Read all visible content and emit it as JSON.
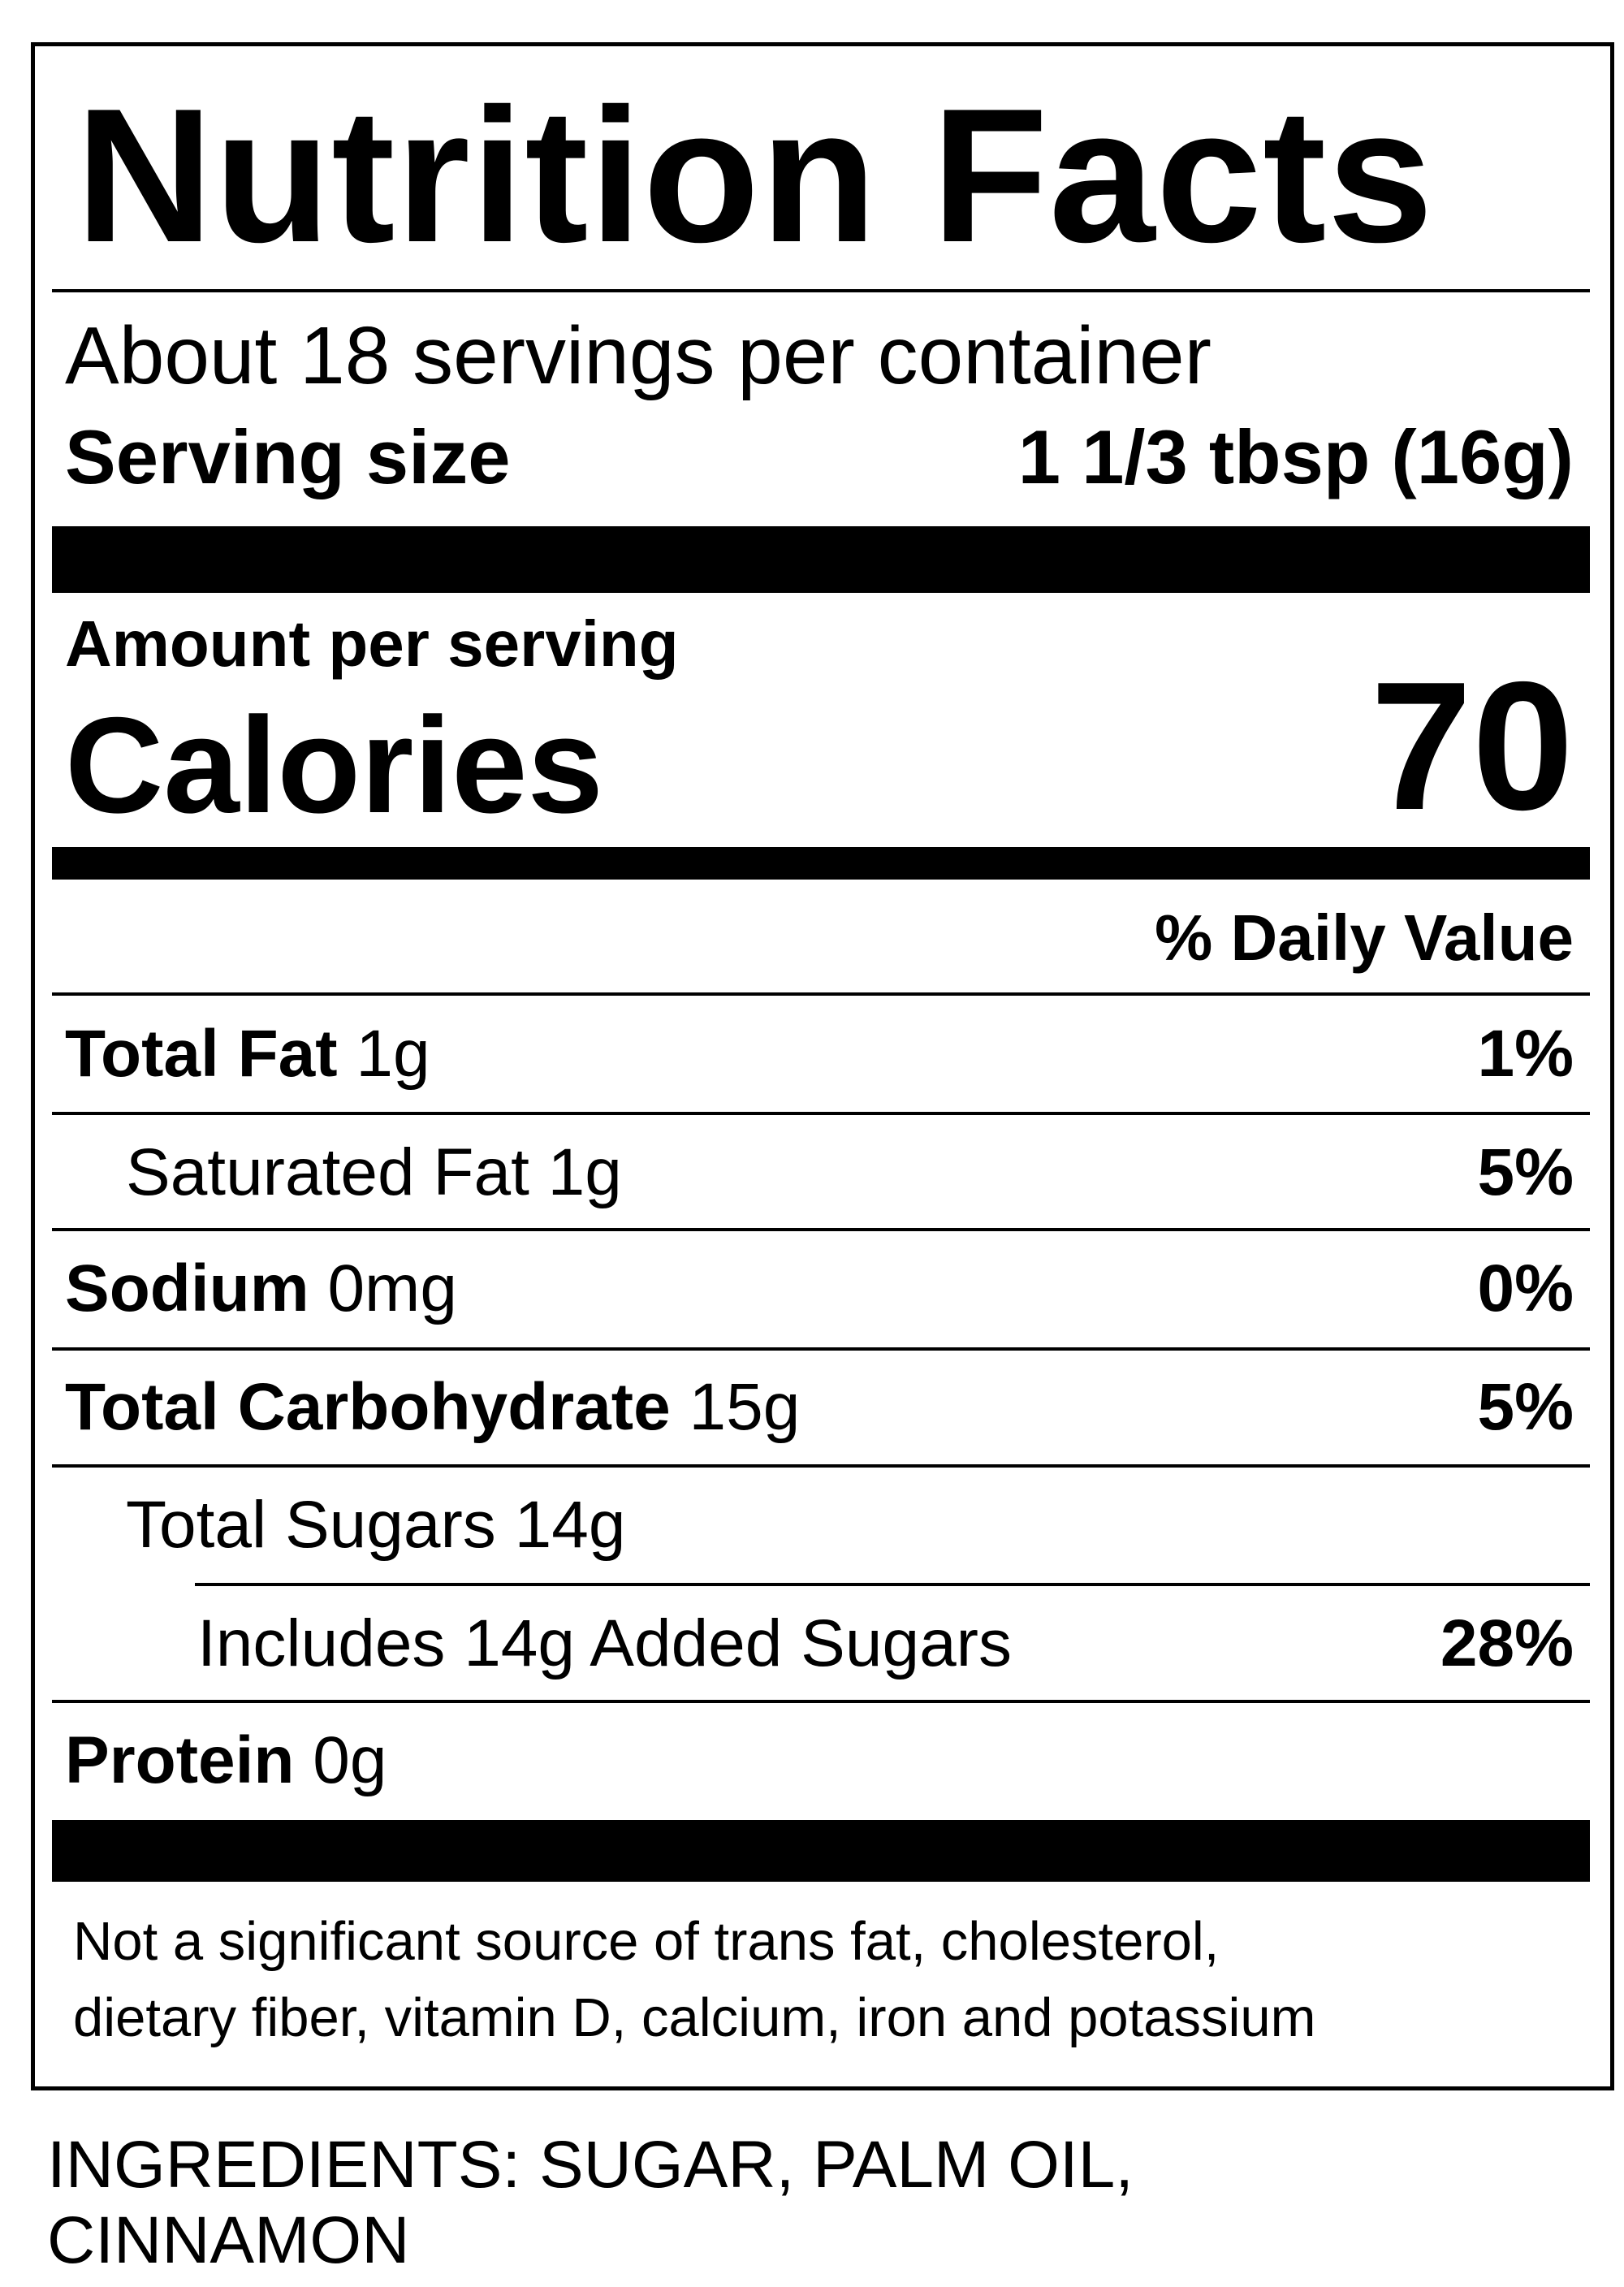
{
  "title": "Nutrition Facts",
  "servings_per_container": "About 18 servings per container",
  "serving_size": {
    "label": "Serving size",
    "value": "1 1/3 tbsp (16g)"
  },
  "amount_per_serving": "Amount per serving",
  "calories": {
    "label": "Calories",
    "value": "70"
  },
  "daily_value_header": "% Daily Value",
  "nutrients": {
    "total_fat": {
      "name": "Total Fat",
      "amount": "1g",
      "dv": "1%"
    },
    "saturated_fat": {
      "name": "Saturated Fat",
      "amount": "1g",
      "dv": "5%"
    },
    "sodium": {
      "name": "Sodium",
      "amount": "0mg",
      "dv": "0%"
    },
    "total_carbohydrate": {
      "name": "Total Carbohydrate",
      "amount": "15g",
      "dv": "5%"
    },
    "total_sugars": {
      "name": "Total Sugars",
      "amount": "14g"
    },
    "added_sugars": {
      "text": "Includes 14g Added Sugars",
      "dv": "28%"
    },
    "protein": {
      "name": "Protein",
      "amount": "0g"
    }
  },
  "footnote": {
    "line1": "Not a significant source of trans fat, cholesterol,",
    "line2": "dietary fiber, vitamin D, calcium, iron and potassium"
  },
  "ingredients": {
    "line1": "INGREDIENTS: SUGAR, PALM OIL,",
    "line2": "CINNAMON"
  }
}
